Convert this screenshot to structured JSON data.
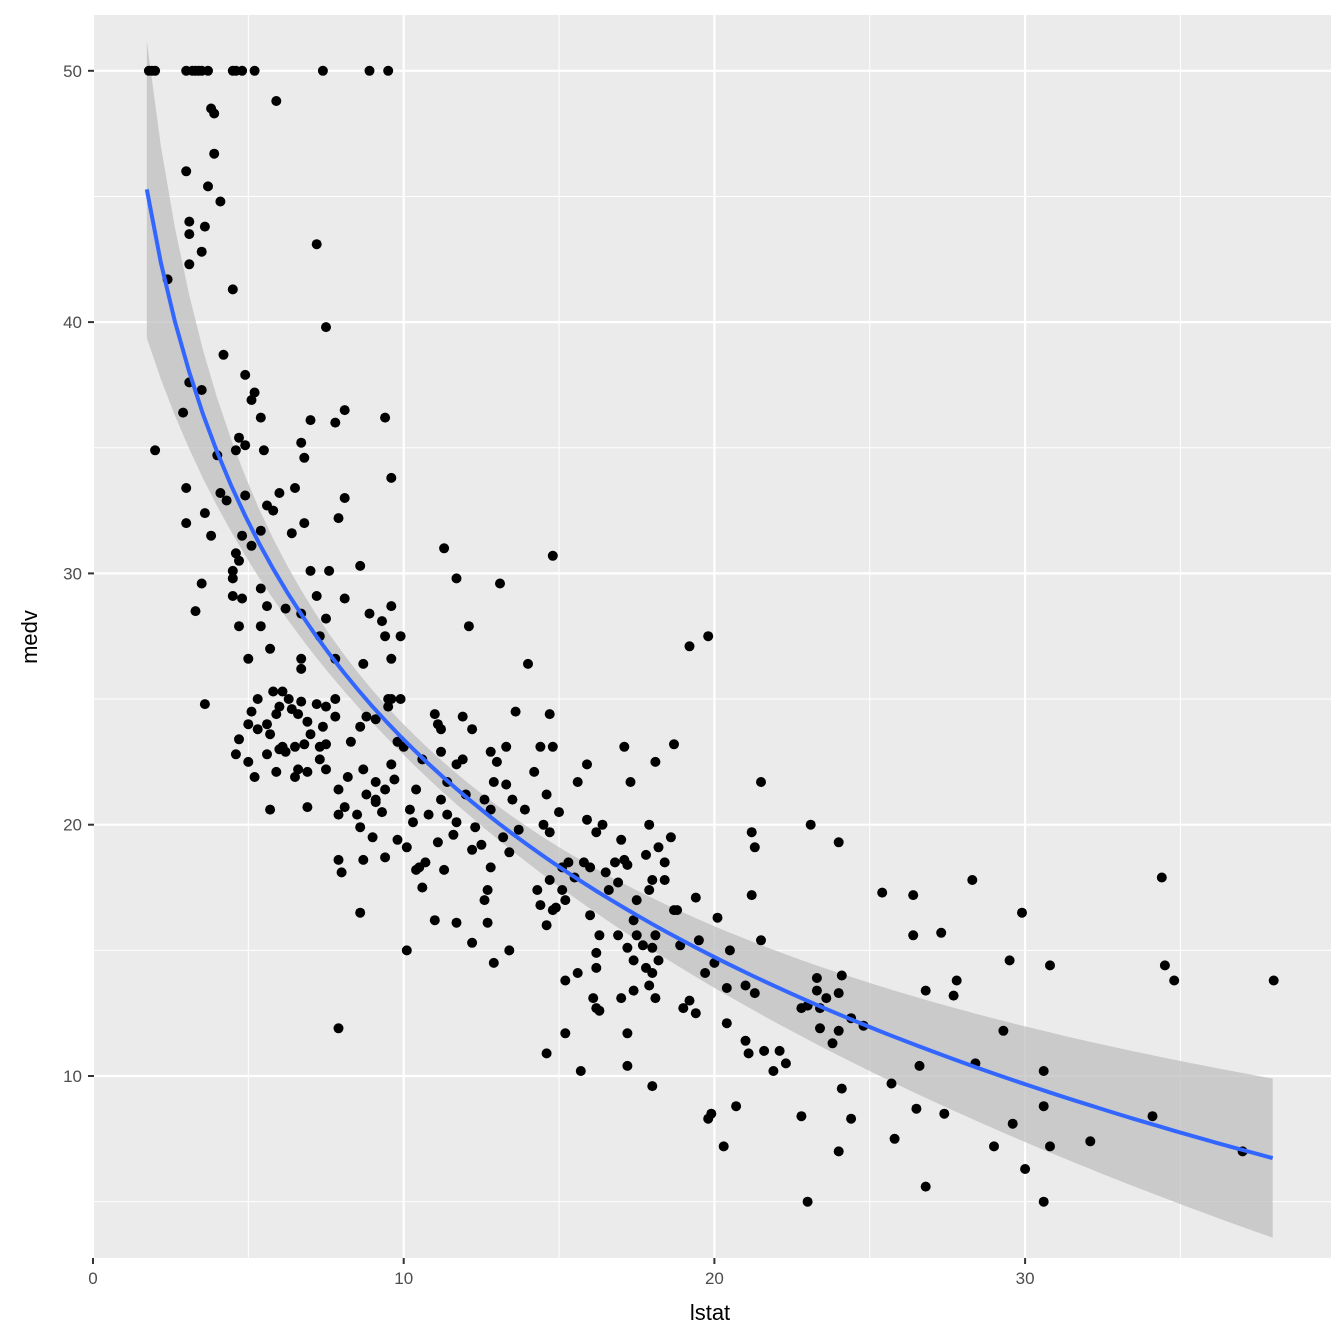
{
  "chart_data": {
    "type": "scatter",
    "title": "",
    "xlabel": "lstat",
    "ylabel": "medv",
    "xlim": [
      0,
      39
    ],
    "ylim": [
      3,
      53
    ],
    "x_ticks": [
      0,
      10,
      20,
      30
    ],
    "x_tick_labels": [
      "0",
      "10",
      "20",
      "30"
    ],
    "y_ticks": [
      10,
      20,
      30,
      40,
      50
    ],
    "y_tick_labels": [
      "10",
      "20",
      "30",
      "40",
      "50"
    ],
    "grid": true,
    "legend": "none",
    "colors": {
      "panel_background": "#ebebeb",
      "grid": "#ffffff",
      "points": "#000000",
      "fit_line": "#3366ff",
      "confidence_band": "#bfbfbf"
    },
    "smooth": {
      "method": "log fit",
      "model": "medv = a + b*log(lstat)",
      "a": 52.12,
      "b": -12.48,
      "x_range": [
        1.73,
        37.97
      ]
    },
    "points": [
      [
        1.8,
        50
      ],
      [
        1.9,
        50
      ],
      [
        2.0,
        50
      ],
      [
        3.0,
        50
      ],
      [
        3.2,
        50
      ],
      [
        3.3,
        50
      ],
      [
        3.4,
        50
      ],
      [
        3.5,
        50
      ],
      [
        3.7,
        50
      ],
      [
        4.5,
        50
      ],
      [
        4.6,
        50
      ],
      [
        4.8,
        50
      ],
      [
        5.2,
        50
      ],
      [
        7.4,
        50
      ],
      [
        8.9,
        50
      ],
      [
        9.5,
        50
      ],
      [
        5.9,
        48.8
      ],
      [
        3.8,
        48.5
      ],
      [
        3.9,
        48.3
      ],
      [
        3.9,
        46.7
      ],
      [
        3.0,
        46.0
      ],
      [
        3.7,
        45.4
      ],
      [
        4.1,
        44.8
      ],
      [
        3.1,
        44.0
      ],
      [
        3.6,
        43.8
      ],
      [
        3.1,
        43.5
      ],
      [
        7.2,
        43.1
      ],
      [
        3.5,
        42.8
      ],
      [
        3.1,
        42.3
      ],
      [
        2.4,
        41.7
      ],
      [
        4.5,
        41.3
      ],
      [
        7.5,
        39.8
      ],
      [
        4.2,
        38.7
      ],
      [
        4.9,
        37.9
      ],
      [
        3.1,
        37.6
      ],
      [
        5.2,
        37.2
      ],
      [
        3.5,
        37.3
      ],
      [
        5.1,
        36.9
      ],
      [
        2.9,
        36.4
      ],
      [
        8.1,
        36.5
      ],
      [
        5.4,
        36.2
      ],
      [
        7.0,
        36.1
      ],
      [
        9.4,
        36.2
      ],
      [
        7.8,
        36.0
      ],
      [
        4.7,
        35.4
      ],
      [
        6.7,
        35.2
      ],
      [
        4.9,
        35.1
      ],
      [
        2.0,
        34.9
      ],
      [
        4.6,
        34.9
      ],
      [
        5.5,
        34.9
      ],
      [
        4.0,
        34.7
      ],
      [
        6.8,
        34.6
      ],
      [
        9.6,
        33.8
      ],
      [
        3.0,
        33.4
      ],
      [
        6.5,
        33.4
      ],
      [
        4.1,
        33.2
      ],
      [
        6.0,
        33.2
      ],
      [
        4.9,
        33.1
      ],
      [
        8.1,
        33.0
      ],
      [
        4.3,
        32.9
      ],
      [
        5.6,
        32.7
      ],
      [
        3.6,
        32.4
      ],
      [
        5.8,
        32.5
      ],
      [
        7.9,
        32.2
      ],
      [
        3.0,
        32.0
      ],
      [
        6.8,
        32.0
      ],
      [
        5.4,
        31.7
      ],
      [
        6.4,
        31.6
      ],
      [
        3.8,
        31.5
      ],
      [
        4.8,
        31.5
      ],
      [
        5.1,
        31.1
      ],
      [
        11.3,
        31.0
      ],
      [
        4.6,
        30.8
      ],
      [
        14.8,
        30.7
      ],
      [
        4.7,
        30.5
      ],
      [
        8.6,
        30.3
      ],
      [
        4.5,
        30.1
      ],
      [
        7.0,
        30.1
      ],
      [
        7.6,
        30.1
      ],
      [
        4.5,
        29.8
      ],
      [
        11.7,
        29.8
      ],
      [
        13.1,
        29.6
      ],
      [
        3.5,
        29.6
      ],
      [
        5.4,
        29.4
      ],
      [
        4.5,
        29.1
      ],
      [
        7.2,
        29.1
      ],
      [
        8.1,
        29.0
      ],
      [
        4.8,
        29.0
      ],
      [
        5.6,
        28.7
      ],
      [
        9.6,
        28.7
      ],
      [
        6.2,
        28.6
      ],
      [
        3.3,
        28.5
      ],
      [
        8.9,
        28.4
      ],
      [
        6.7,
        28.4
      ],
      [
        9.3,
        28.1
      ],
      [
        7.5,
        28.2
      ],
      [
        4.7,
        27.9
      ],
      [
        12.1,
        27.9
      ],
      [
        5.4,
        27.9
      ],
      [
        9.9,
        27.5
      ],
      [
        9.4,
        27.5
      ],
      [
        7.3,
        27.5
      ],
      [
        19.8,
        27.5
      ],
      [
        19.2,
        27.1
      ],
      [
        5.7,
        27.0
      ],
      [
        7.8,
        26.6
      ],
      [
        6.7,
        26.6
      ],
      [
        9.6,
        26.6
      ],
      [
        5.0,
        26.6
      ],
      [
        14.0,
        26.4
      ],
      [
        8.7,
        26.4
      ],
      [
        6.7,
        26.2
      ],
      [
        3.6,
        24.8
      ],
      [
        6.1,
        25.3
      ],
      [
        5.8,
        25.3
      ],
      [
        9.5,
        25.0
      ],
      [
        9.6,
        25.0
      ],
      [
        6.3,
        25.0
      ],
      [
        7.8,
        25.0
      ],
      [
        9.9,
        25.0
      ],
      [
        5.3,
        25.0
      ],
      [
        7.2,
        24.8
      ],
      [
        6.7,
        24.9
      ],
      [
        9.5,
        24.7
      ],
      [
        7.5,
        24.7
      ],
      [
        6.0,
        24.7
      ],
      [
        5.9,
        24.4
      ],
      [
        6.4,
        24.6
      ],
      [
        6.6,
        24.4
      ],
      [
        11.0,
        24.4
      ],
      [
        11.9,
        24.3
      ],
      [
        14.7,
        24.4
      ],
      [
        13.6,
        24.5
      ],
      [
        5.1,
        24.5
      ],
      [
        4.7,
        23.4
      ],
      [
        7.8,
        24.3
      ],
      [
        8.8,
        24.3
      ],
      [
        9.1,
        24.2
      ],
      [
        6.9,
        24.1
      ],
      [
        5.6,
        24.0
      ],
      [
        11.1,
        24.0
      ],
      [
        5.0,
        24.0
      ],
      [
        8.6,
        23.9
      ],
      [
        7.4,
        23.9
      ],
      [
        12.2,
        23.8
      ],
      [
        11.2,
        23.8
      ],
      [
        5.7,
        23.6
      ],
      [
        7.0,
        23.6
      ],
      [
        8.3,
        23.3
      ],
      [
        5.3,
        23.8
      ],
      [
        6.8,
        23.2
      ],
      [
        6.1,
        23.1
      ],
      [
        6.5,
        23.1
      ],
      [
        10.0,
        23.1
      ],
      [
        7.3,
        23.1
      ],
      [
        7.5,
        23.2
      ],
      [
        14.4,
        23.1
      ],
      [
        14.8,
        23.1
      ],
      [
        17.1,
        23.1
      ],
      [
        18.7,
        23.2
      ],
      [
        9.8,
        23.3
      ],
      [
        13.3,
        23.1
      ],
      [
        6.0,
        23.0
      ],
      [
        4.6,
        22.8
      ],
      [
        6.2,
        22.9
      ],
      [
        7.3,
        22.6
      ],
      [
        11.2,
        22.9
      ],
      [
        11.9,
        22.6
      ],
      [
        12.8,
        22.9
      ],
      [
        10.6,
        22.6
      ],
      [
        13.0,
        22.5
      ],
      [
        5.0,
        22.5
      ],
      [
        5.6,
        22.8
      ],
      [
        6.6,
        22.2
      ],
      [
        6.9,
        22.1
      ],
      [
        5.9,
        22.1
      ],
      [
        7.5,
        22.2
      ],
      [
        8.7,
        22.2
      ],
      [
        9.6,
        22.4
      ],
      [
        11.7,
        22.4
      ],
      [
        15.9,
        22.4
      ],
      [
        14.2,
        22.1
      ],
      [
        18.1,
        22.5
      ],
      [
        8.2,
        21.9
      ],
      [
        6.5,
        21.9
      ],
      [
        5.2,
        21.9
      ],
      [
        9.1,
        21.7
      ],
      [
        9.7,
        21.8
      ],
      [
        11.4,
        21.7
      ],
      [
        12.9,
        21.7
      ],
      [
        13.3,
        21.6
      ],
      [
        17.3,
        21.7
      ],
      [
        21.5,
        21.7
      ],
      [
        15.6,
        21.7
      ],
      [
        7.9,
        21.4
      ],
      [
        8.8,
        21.2
      ],
      [
        9.4,
        21.4
      ],
      [
        10.4,
        21.4
      ],
      [
        12.0,
        21.2
      ],
      [
        11.2,
        21.0
      ],
      [
        12.6,
        21.0
      ],
      [
        13.5,
        21.0
      ],
      [
        14.6,
        21.2
      ],
      [
        9.1,
        21.0
      ],
      [
        8.5,
        20.4
      ],
      [
        9.1,
        20.9
      ],
      [
        10.2,
        20.6
      ],
      [
        10.8,
        20.4
      ],
      [
        11.4,
        20.4
      ],
      [
        12.8,
        20.6
      ],
      [
        13.9,
        20.6
      ],
      [
        15.0,
        20.5
      ],
      [
        15.9,
        20.2
      ],
      [
        16.4,
        20.0
      ],
      [
        14.5,
        20.0
      ],
      [
        17.9,
        20.0
      ],
      [
        7.9,
        20.4
      ],
      [
        5.7,
        20.6
      ],
      [
        6.9,
        20.7
      ],
      [
        8.1,
        20.7
      ],
      [
        9.3,
        20.5
      ],
      [
        10.3,
        20.1
      ],
      [
        11.7,
        20.1
      ],
      [
        12.3,
        19.9
      ],
      [
        13.7,
        19.8
      ],
      [
        13.2,
        19.5
      ],
      [
        14.7,
        19.7
      ],
      [
        16.2,
        19.7
      ],
      [
        17.0,
        19.4
      ],
      [
        18.6,
        19.5
      ],
      [
        21.2,
        19.7
      ],
      [
        21.3,
        19.1
      ],
      [
        24.0,
        19.3
      ],
      [
        23.1,
        20.0
      ],
      [
        11.6,
        19.6
      ],
      [
        11.1,
        19.3
      ],
      [
        12.5,
        19.2
      ],
      [
        10.1,
        19.1
      ],
      [
        9.8,
        19.4
      ],
      [
        8.6,
        19.9
      ],
      [
        9.0,
        19.5
      ],
      [
        8.7,
        18.6
      ],
      [
        9.4,
        18.7
      ],
      [
        10.7,
        18.5
      ],
      [
        12.2,
        19.0
      ],
      [
        13.4,
        18.9
      ],
      [
        15.3,
        18.5
      ],
      [
        15.8,
        18.5
      ],
      [
        16.0,
        18.3
      ],
      [
        16.8,
        18.5
      ],
      [
        16.5,
        18.1
      ],
      [
        17.8,
        18.8
      ],
      [
        17.1,
        18.6
      ],
      [
        18.2,
        19.1
      ],
      [
        18.4,
        18.5
      ],
      [
        10.5,
        18.3
      ],
      [
        10.4,
        18.2
      ],
      [
        11.3,
        18.2
      ],
      [
        12.8,
        18.3
      ],
      [
        15.1,
        18.3
      ],
      [
        14.7,
        17.8
      ],
      [
        15.5,
        17.9
      ],
      [
        16.9,
        17.7
      ],
      [
        17.2,
        18.4
      ],
      [
        18.0,
        17.8
      ],
      [
        18.4,
        17.8
      ],
      [
        17.9,
        17.4
      ],
      [
        16.6,
        17.4
      ],
      [
        8.0,
        18.1
      ],
      [
        7.9,
        18.6
      ],
      [
        10.6,
        17.5
      ],
      [
        14.3,
        17.4
      ],
      [
        15.1,
        17.4
      ],
      [
        15.2,
        17.0
      ],
      [
        17.5,
        17.0
      ],
      [
        19.4,
        17.1
      ],
      [
        21.2,
        17.2
      ],
      [
        25.4,
        17.3
      ],
      [
        26.4,
        17.2
      ],
      [
        28.3,
        17.8
      ],
      [
        34.4,
        17.9
      ],
      [
        12.6,
        17.0
      ],
      [
        12.7,
        17.4
      ],
      [
        14.4,
        16.8
      ],
      [
        14.8,
        16.6
      ],
      [
        14.9,
        16.7
      ],
      [
        16.0,
        16.4
      ],
      [
        18.7,
        16.6
      ],
      [
        18.8,
        16.6
      ],
      [
        20.1,
        16.3
      ],
      [
        17.4,
        16.2
      ],
      [
        11.7,
        16.1
      ],
      [
        11.0,
        16.2
      ],
      [
        12.7,
        16.1
      ],
      [
        14.6,
        16.0
      ],
      [
        8.6,
        16.5
      ],
      [
        29.9,
        16.5
      ],
      [
        17.5,
        15.6
      ],
      [
        18.1,
        15.6
      ],
      [
        16.3,
        15.6
      ],
      [
        16.9,
        15.6
      ],
      [
        19.5,
        15.4
      ],
      [
        20.5,
        15.0
      ],
      [
        21.5,
        15.4
      ],
      [
        26.4,
        15.6
      ],
      [
        27.3,
        15.7
      ],
      [
        12.2,
        15.3
      ],
      [
        18.9,
        15.2
      ],
      [
        17.2,
        15.1
      ],
      [
        18.0,
        15.1
      ],
      [
        17.7,
        15.2
      ],
      [
        16.2,
        14.9
      ],
      [
        13.4,
        15.0
      ],
      [
        17.4,
        14.6
      ],
      [
        18.2,
        14.6
      ],
      [
        20.0,
        14.5
      ],
      [
        18.0,
        14.1
      ],
      [
        19.7,
        14.1
      ],
      [
        17.8,
        14.3
      ],
      [
        16.2,
        14.3
      ],
      [
        15.6,
        14.1
      ],
      [
        15.2,
        13.8
      ],
      [
        16.1,
        13.1
      ],
      [
        12.9,
        14.5
      ],
      [
        17.9,
        13.6
      ],
      [
        20.4,
        13.5
      ],
      [
        21.0,
        13.6
      ],
      [
        21.3,
        13.3
      ],
      [
        23.3,
        13.4
      ],
      [
        23.6,
        13.1
      ],
      [
        24.0,
        13.3
      ],
      [
        26.8,
        13.4
      ],
      [
        27.7,
        13.2
      ],
      [
        23.3,
        13.9
      ],
      [
        24.1,
        14.0
      ],
      [
        27.8,
        13.8
      ],
      [
        29.5,
        14.6
      ],
      [
        30.8,
        14.4
      ],
      [
        34.5,
        14.4
      ],
      [
        34.8,
        13.8
      ],
      [
        38.0,
        13.8
      ],
      [
        18.1,
        13.1
      ],
      [
        17.4,
        13.4
      ],
      [
        16.2,
        12.7
      ],
      [
        16.3,
        12.6
      ],
      [
        17.0,
        13.1
      ],
      [
        19.2,
        13.0
      ],
      [
        19.0,
        12.7
      ],
      [
        19.4,
        12.5
      ],
      [
        22.8,
        12.7
      ],
      [
        23.0,
        12.8
      ],
      [
        23.4,
        12.7
      ],
      [
        24.4,
        12.3
      ],
      [
        24.8,
        12.0
      ],
      [
        20.4,
        12.1
      ],
      [
        15.2,
        11.7
      ],
      [
        17.2,
        11.7
      ],
      [
        21.0,
        11.4
      ],
      [
        22.1,
        11.0
      ],
      [
        21.6,
        11.0
      ],
      [
        23.4,
        11.9
      ],
      [
        23.8,
        11.3
      ],
      [
        24.0,
        11.8
      ],
      [
        29.3,
        11.8
      ],
      [
        21.1,
        10.9
      ],
      [
        14.6,
        10.9
      ],
      [
        21.9,
        10.2
      ],
      [
        22.3,
        10.5
      ],
      [
        28.4,
        10.5
      ],
      [
        26.6,
        10.4
      ],
      [
        30.6,
        10.2
      ],
      [
        15.7,
        10.2
      ],
      [
        17.2,
        10.4
      ],
      [
        7.9,
        11.9
      ],
      [
        10.1,
        15.0
      ],
      [
        25.7,
        9.7
      ],
      [
        18.0,
        9.6
      ],
      [
        24.1,
        9.5
      ],
      [
        24.4,
        8.3
      ],
      [
        20.7,
        8.8
      ],
      [
        19.8,
        8.3
      ],
      [
        19.9,
        8.5
      ],
      [
        22.8,
        8.4
      ],
      [
        26.5,
        8.7
      ],
      [
        27.4,
        8.5
      ],
      [
        30.6,
        8.8
      ],
      [
        34.1,
        8.4
      ],
      [
        29.6,
        8.1
      ],
      [
        25.8,
        7.5
      ],
      [
        20.3,
        7.2
      ],
      [
        24.0,
        7.0
      ],
      [
        29.0,
        7.2
      ],
      [
        30.8,
        7.2
      ],
      [
        32.1,
        7.4
      ],
      [
        37.0,
        7.0
      ],
      [
        30.0,
        6.3
      ],
      [
        26.8,
        5.6
      ],
      [
        23.0,
        5.0
      ],
      [
        30.6,
        5.0
      ]
    ]
  }
}
